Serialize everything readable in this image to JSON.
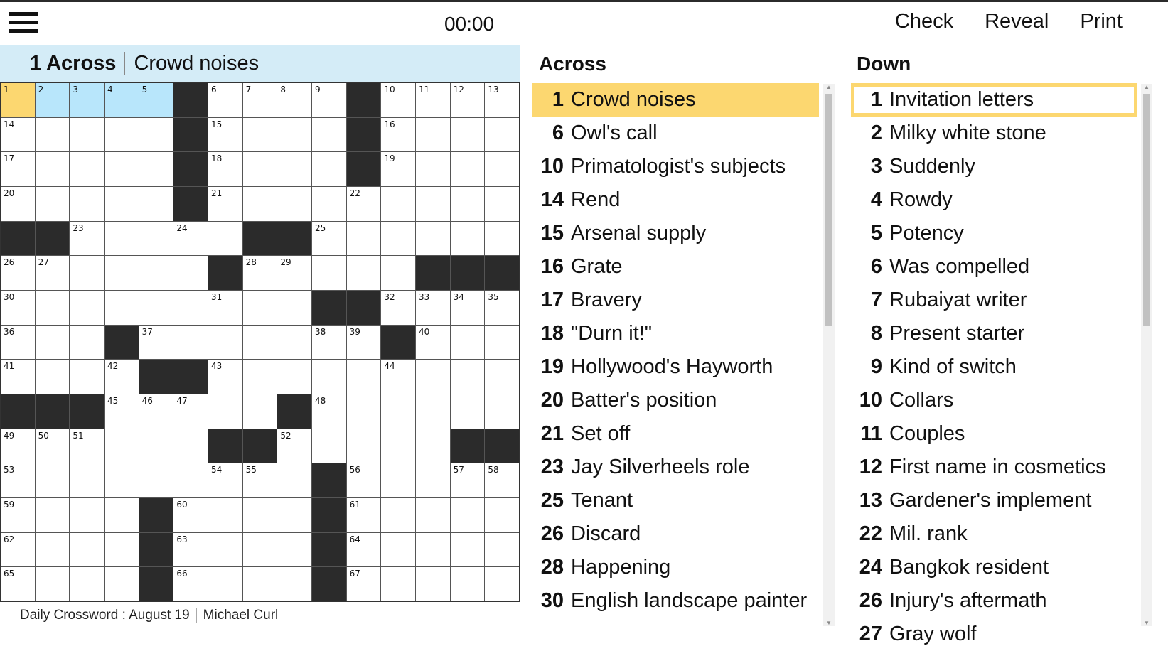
{
  "header": {
    "timer": "00:00",
    "actions": [
      "Check",
      "Reveal",
      "Print"
    ],
    "menu_icon": "hamburger-icon"
  },
  "current_clue": {
    "number": "1 Across",
    "text": "Crowd noises"
  },
  "colors": {
    "active_cell": "#fcd770",
    "active_word": "#b8e6fb",
    "clue_bar": "#d4ecf7",
    "black": "#2b2b2b"
  },
  "grid": [
    [
      "1",
      "2",
      "3",
      "4",
      "5",
      "#",
      "6",
      "7",
      "8",
      "9",
      "#",
      "10",
      "11",
      "12",
      "13"
    ],
    [
      "14",
      "",
      "",
      "",
      "",
      "#",
      "15",
      "",
      "",
      "",
      "#",
      "16",
      "",
      "",
      ""
    ],
    [
      "17",
      "",
      "",
      "",
      "",
      "#",
      "18",
      "",
      "",
      "",
      "#",
      "19",
      "",
      "",
      ""
    ],
    [
      "20",
      "",
      "",
      "",
      "",
      "#",
      "21",
      "",
      "",
      "",
      "22",
      "",
      "",
      "",
      ""
    ],
    [
      "#",
      "#",
      "23",
      "",
      "",
      "24",
      "",
      "#",
      "#",
      "25",
      "",
      "",
      "",
      "",
      ""
    ],
    [
      "26",
      "27",
      "",
      "",
      "",
      "",
      "#",
      "28",
      "29",
      "",
      "",
      "",
      "#",
      "#",
      "#"
    ],
    [
      "30",
      "",
      "",
      "",
      "",
      "",
      "31",
      "",
      "",
      "#",
      "#",
      "32",
      "33",
      "34",
      "35"
    ],
    [
      "36",
      "",
      "",
      "#",
      "37",
      "",
      "",
      "",
      "",
      "38",
      "39",
      "#",
      "40",
      "",
      ""
    ],
    [
      "41",
      "",
      "",
      "42",
      "#",
      "#",
      "43",
      "",
      "",
      "",
      "",
      "44",
      "",
      "",
      ""
    ],
    [
      "#",
      "#",
      "#",
      "45",
      "46",
      "47",
      "",
      "",
      "#",
      "48",
      "",
      "",
      "",
      "",
      ""
    ],
    [
      "49",
      "50",
      "51",
      "",
      "",
      "",
      "#",
      "#",
      "52",
      "",
      "",
      "",
      "",
      "#",
      "#"
    ],
    [
      "53",
      "",
      "",
      "",
      "",
      "",
      "54",
      "55",
      "",
      "#",
      "56",
      "",
      "",
      "57",
      "58"
    ],
    [
      "59",
      "",
      "",
      "",
      "#",
      "60",
      "",
      "",
      "",
      "#",
      "61",
      "",
      "",
      "",
      ""
    ],
    [
      "62",
      "",
      "",
      "",
      "#",
      "63",
      "",
      "",
      "",
      "#",
      "64",
      "",
      "",
      "",
      ""
    ],
    [
      "65",
      "",
      "",
      "",
      "#",
      "66",
      "",
      "",
      "",
      "#",
      "67",
      "",
      "",
      "",
      ""
    ]
  ],
  "across": {
    "title": "Across",
    "items": [
      {
        "n": "1",
        "t": "Crowd noises"
      },
      {
        "n": "6",
        "t": "Owl's call"
      },
      {
        "n": "10",
        "t": "Primatologist's subjects"
      },
      {
        "n": "14",
        "t": "Rend"
      },
      {
        "n": "15",
        "t": "Arsenal supply"
      },
      {
        "n": "16",
        "t": "Grate"
      },
      {
        "n": "17",
        "t": "Bravery"
      },
      {
        "n": "18",
        "t": "\"Durn it!\""
      },
      {
        "n": "19",
        "t": "Hollywood's Hayworth"
      },
      {
        "n": "20",
        "t": "Batter's position"
      },
      {
        "n": "21",
        "t": "Set off"
      },
      {
        "n": "23",
        "t": "Jay Silverheels role"
      },
      {
        "n": "25",
        "t": "Tenant"
      },
      {
        "n": "26",
        "t": "Discard"
      },
      {
        "n": "28",
        "t": "Happening"
      },
      {
        "n": "30",
        "t": "English landscape painter"
      }
    ]
  },
  "down": {
    "title": "Down",
    "items": [
      {
        "n": "1",
        "t": "Invitation letters"
      },
      {
        "n": "2",
        "t": "Milky white stone"
      },
      {
        "n": "3",
        "t": "Suddenly"
      },
      {
        "n": "4",
        "t": "Rowdy"
      },
      {
        "n": "5",
        "t": "Potency"
      },
      {
        "n": "6",
        "t": "Was compelled"
      },
      {
        "n": "7",
        "t": "Rubaiyat writer"
      },
      {
        "n": "8",
        "t": "Present starter"
      },
      {
        "n": "9",
        "t": "Kind of switch"
      },
      {
        "n": "10",
        "t": "Collars"
      },
      {
        "n": "11",
        "t": "Couples"
      },
      {
        "n": "12",
        "t": "First name in cosmetics"
      },
      {
        "n": "13",
        "t": "Gardener's implement"
      },
      {
        "n": "22",
        "t": "Mil. rank"
      },
      {
        "n": "24",
        "t": "Bangkok resident"
      },
      {
        "n": "26",
        "t": "Injury's aftermath"
      },
      {
        "n": "27",
        "t": "Gray wolf"
      }
    ]
  },
  "footer": {
    "title": "Daily Crossword : August 19",
    "author": "Michael Curl"
  }
}
